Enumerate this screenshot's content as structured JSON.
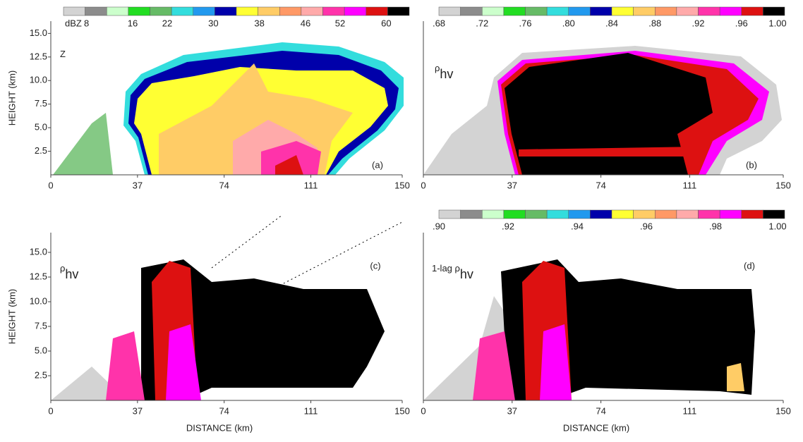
{
  "chart_data": [
    {
      "type": "heatmap",
      "label": "Z",
      "panel": "(a)",
      "y_label": "HEIGHT (km)",
      "colorbar": {
        "unit": "dBZ",
        "lim": [
          4,
          64
        ],
        "colors": [
          "#d3d3d3",
          "#8c8c8c",
          "#ccffcc",
          "#22dd22",
          "#66bb66",
          "#33dddd",
          "#2299ee",
          "#0000aa",
          "#ffff33",
          "#ffcc66",
          "#ff9966",
          "#ffaaaa",
          "#ff33aa",
          "#ff00ff",
          "#dd1111",
          "#000000"
        ],
        "ticks": [
          8,
          16,
          22,
          30,
          38,
          46,
          52,
          60
        ]
      },
      "xlim": [
        0,
        150
      ],
      "xticks": [
        0,
        37,
        74,
        111,
        150
      ],
      "ylim": [
        0,
        16.3
      ],
      "yticks": [
        2.5,
        {
          "value": 5,
          "label": "5.0"
        },
        7.5,
        {
          "value": 10,
          "label": "10.0"
        },
        12.5,
        {
          "value": 15,
          "label": "15.0"
        }
      ]
    },
    {
      "type": "heatmap",
      "label": "ρ",
      "label_subscript": "hv",
      "panel": "(b)",
      "colorbar": {
        "lim": [
          0.68,
          1.0
        ],
        "colors": [
          "#d3d3d3",
          "#8c8c8c",
          "#ccffcc",
          "#22dd22",
          "#66bb66",
          "#33dddd",
          "#2299ee",
          "#0000aa",
          "#ffff33",
          "#ffcc66",
          "#ff9966",
          "#ffaaaa",
          "#ff33aa",
          "#ff00ff",
          "#dd1111",
          "#000000"
        ],
        "ticks": [
          {
            "value": 0.68,
            "label": ".68"
          },
          {
            "value": 0.72,
            "label": ".72"
          },
          {
            "value": 0.76,
            "label": ".76"
          },
          {
            "value": 0.8,
            "label": ".80"
          },
          {
            "value": 0.84,
            "label": ".84"
          },
          {
            "value": 0.88,
            "label": ".88"
          },
          {
            "value": 0.92,
            "label": ".92"
          },
          {
            "value": 0.96,
            "label": ".96"
          },
          {
            "value": 1.0,
            "label": "1.00"
          }
        ]
      },
      "xlim": [
        0,
        150
      ],
      "xticks": [
        0,
        37,
        74,
        111,
        150
      ]
    },
    {
      "type": "heatmap",
      "label": "ρ",
      "label_subscript": "hv",
      "panel": "(c)",
      "y_label": "HEIGHT (km)",
      "x_label": "DISTANCE (km)",
      "xlim": [
        0,
        150
      ],
      "xticks": [
        0,
        37,
        74,
        111,
        150
      ],
      "ylim": [
        0,
        17
      ],
      "yticks": [
        2.5,
        {
          "value": 5,
          "label": "5.0"
        },
        7.5,
        {
          "value": 10,
          "label": "10.0"
        },
        12.5,
        {
          "value": 15,
          "label": "15.0"
        }
      ]
    },
    {
      "type": "heatmap",
      "label": "1-lag ρ",
      "label_subscript": "hv",
      "panel": "(d)",
      "x_label": "DISTANCE (km)",
      "colorbar": {
        "lim": [
          0.9,
          1.0
        ],
        "colors": [
          "#d3d3d3",
          "#8c8c8c",
          "#ccffcc",
          "#22dd22",
          "#66bb66",
          "#33dddd",
          "#2299ee",
          "#0000aa",
          "#ffff33",
          "#ffcc66",
          "#ff9966",
          "#ffaaaa",
          "#ff33aa",
          "#ff00ff",
          "#dd1111",
          "#000000"
        ],
        "ticks": [
          {
            "value": 0.9,
            "label": ".90"
          },
          {
            "value": 0.92,
            "label": ".92"
          },
          {
            "value": 0.94,
            "label": ".94"
          },
          {
            "value": 0.96,
            "label": ".96"
          },
          {
            "value": 0.98,
            "label": ".98"
          },
          {
            "value": 1.0,
            "label": "1.00"
          }
        ]
      },
      "xlim": [
        0,
        150
      ],
      "xticks": [
        0,
        37,
        74,
        111,
        150
      ]
    }
  ]
}
